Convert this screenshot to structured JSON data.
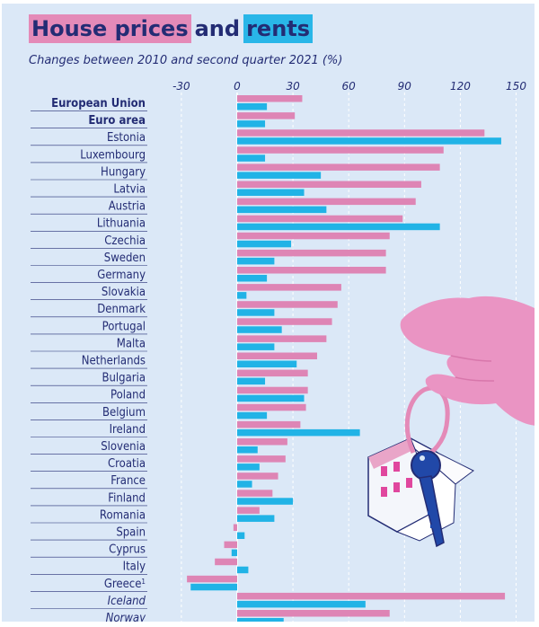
{
  "title": {
    "part1": "House prices",
    "part2": "and",
    "part3": "rents"
  },
  "subtitle": "Changes between 2010 and second quarter 2021 (%)",
  "colors": {
    "house_prices": "#de85b5",
    "rents": "#21b3e6",
    "background": "#dbe8f7",
    "text": "#232c74"
  },
  "chart_data": {
    "type": "bar",
    "orientation": "horizontal",
    "x_ticks": [
      "-30",
      "0",
      "30",
      "60",
      "90",
      "120",
      "150"
    ],
    "xlim": [
      -30,
      150
    ],
    "categories": [
      "European Union",
      "Euro area",
      "Estonia",
      "Luxembourg",
      "Hungary",
      "Latvia",
      "Austria",
      "Lithuania",
      "Czechia",
      "Sweden",
      "Germany",
      "Slovakia",
      "Denmark",
      "Portugal",
      "Malta",
      "Netherlands",
      "Bulgaria",
      "Poland",
      "Belgium",
      "Ireland",
      "Slovenia",
      "Croatia",
      "France",
      "Finland",
      "Romania",
      "Spain",
      "Cyprus",
      "Italy",
      "Greece",
      "Iceland",
      "Norway"
    ],
    "category_style": [
      "bold",
      "bold",
      "normal",
      "normal",
      "normal",
      "normal",
      "normal",
      "normal",
      "normal",
      "normal",
      "normal",
      "normal",
      "normal",
      "normal",
      "normal",
      "normal",
      "normal",
      "normal",
      "normal",
      "normal",
      "normal",
      "normal",
      "normal",
      "normal",
      "normal",
      "normal",
      "normal",
      "normal",
      "normal",
      "italic",
      "italic"
    ],
    "footnote_marks": {
      "Greece": "1"
    },
    "series": [
      {
        "key": "house_prices",
        "values": [
          35,
          31,
          133,
          111,
          109,
          99,
          96,
          89,
          82,
          80,
          80,
          56,
          54,
          51,
          48,
          43,
          38,
          38,
          37,
          34,
          27,
          26,
          22,
          19,
          12,
          -2,
          -7,
          -12,
          -27,
          144,
          82
        ]
      },
      {
        "key": "rents",
        "values": [
          16,
          15,
          142,
          15,
          45,
          36,
          48,
          109,
          29,
          20,
          16,
          5,
          20,
          24,
          20,
          32,
          15,
          36,
          16,
          66,
          11,
          12,
          8,
          30,
          20,
          4,
          -3,
          6,
          -25,
          69,
          25
        ]
      }
    ],
    "grid": true
  }
}
